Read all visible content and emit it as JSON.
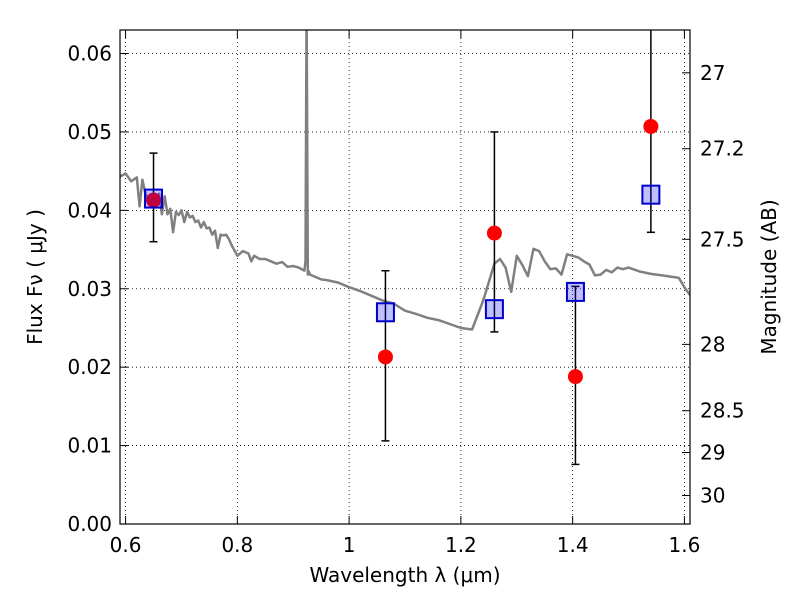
{
  "chart_data": {
    "type": "scatter",
    "xlabel": "Wavelength  λ (μm)",
    "ylabel": "Flux  Fν  ( μJy )",
    "ylabel_right": "Magnitude (AB)",
    "xlim": [
      0.59,
      1.61
    ],
    "ylim": [
      0.0,
      0.063
    ],
    "grid": true,
    "x_ticks": [
      0.6,
      0.8,
      1.0,
      1.2,
      1.4,
      1.6
    ],
    "x_tick_labels": [
      "0.6",
      "0.8",
      "1",
      "1.2",
      "1.4",
      "1.6"
    ],
    "y_ticks": [
      0.0,
      0.01,
      0.02,
      0.03,
      0.04,
      0.05,
      0.06
    ],
    "y_tick_labels": [
      "0.00",
      "0.01",
      "0.02",
      "0.03",
      "0.04",
      "0.05",
      "0.06"
    ],
    "right_ticks": [
      {
        "label": "27",
        "flux": 0.05754
      },
      {
        "label": "27.2",
        "flux": 0.04786
      },
      {
        "label": "27.5",
        "flux": 0.03631
      },
      {
        "label": "28",
        "flux": 0.02291
      },
      {
        "label": "28.5",
        "flux": 0.01445
      },
      {
        "label": "29",
        "flux": 0.00912
      },
      {
        "label": "30",
        "flux": 0.00363
      }
    ],
    "series": [
      {
        "style": "gray line",
        "color": "#808080",
        "x": [
          0.59,
          0.6,
          0.61,
          0.62,
          0.625,
          0.63,
          0.635,
          0.64,
          0.65,
          0.655,
          0.66,
          0.665,
          0.67,
          0.675,
          0.68,
          0.685,
          0.69,
          0.695,
          0.7,
          0.705,
          0.71,
          0.715,
          0.72,
          0.725,
          0.73,
          0.735,
          0.74,
          0.745,
          0.75,
          0.755,
          0.76,
          0.765,
          0.77,
          0.775,
          0.78,
          0.785,
          0.79,
          0.8,
          0.81,
          0.82,
          0.825,
          0.83,
          0.84,
          0.85,
          0.86,
          0.87,
          0.88,
          0.89,
          0.9,
          0.91,
          0.92,
          0.922,
          0.924,
          0.926,
          0.928,
          0.93,
          0.94,
          0.95,
          0.96,
          0.98,
          1.0,
          1.02,
          1.04,
          1.06,
          1.08,
          1.1,
          1.12,
          1.14,
          1.16,
          1.18,
          1.2,
          1.22,
          1.24,
          1.26,
          1.27,
          1.28,
          1.29,
          1.3,
          1.31,
          1.32,
          1.33,
          1.34,
          1.35,
          1.36,
          1.37,
          1.38,
          1.39,
          1.4,
          1.41,
          1.42,
          1.43,
          1.44,
          1.45,
          1.46,
          1.47,
          1.48,
          1.49,
          1.5,
          1.52,
          1.54,
          1.56,
          1.58,
          1.59,
          1.6,
          1.61
        ],
        "y": [
          0.0443,
          0.0447,
          0.0437,
          0.0442,
          0.0405,
          0.0439,
          0.0423,
          0.0414,
          0.0418,
          0.0412,
          0.0421,
          0.0395,
          0.0418,
          0.0395,
          0.0402,
          0.0372,
          0.0398,
          0.0394,
          0.04,
          0.0385,
          0.0398,
          0.0391,
          0.0393,
          0.0385,
          0.0387,
          0.0378,
          0.0385,
          0.0377,
          0.0378,
          0.0369,
          0.0374,
          0.0352,
          0.0369,
          0.0368,
          0.0369,
          0.0363,
          0.0355,
          0.0342,
          0.0348,
          0.0345,
          0.0335,
          0.0342,
          0.0338,
          0.0338,
          0.0335,
          0.0332,
          0.0334,
          0.0328,
          0.0329,
          0.0327,
          0.0323,
          0.0335,
          0.066,
          0.0318,
          0.0322,
          0.0318,
          0.0315,
          0.0312,
          0.0311,
          0.0308,
          0.0302,
          0.0297,
          0.0291,
          0.0285,
          0.0281,
          0.0272,
          0.0268,
          0.0263,
          0.026,
          0.0255,
          0.025,
          0.0248,
          0.0285,
          0.0332,
          0.0338,
          0.0327,
          0.0296,
          0.0342,
          0.033,
          0.0316,
          0.0351,
          0.0348,
          0.0335,
          0.0325,
          0.0326,
          0.0318,
          0.0344,
          0.0342,
          0.034,
          0.0335,
          0.0331,
          0.0317,
          0.0318,
          0.0324,
          0.0321,
          0.0327,
          0.0325,
          0.0327,
          0.0322,
          0.0319,
          0.0317,
          0.0315,
          0.0314,
          0.0302,
          0.0292
        ]
      },
      {
        "style": "red filled circles with error bars",
        "color": "#ff0000",
        "x": [
          0.65,
          1.065,
          1.26,
          1.405,
          1.54
        ],
        "y": [
          0.0413,
          0.0213,
          0.0371,
          0.0188,
          0.0507
        ],
        "yerr_low": [
          0.0053,
          0.0107,
          0.0126,
          0.0112,
          0.0135
        ],
        "yerr_high": [
          0.006,
          0.011,
          0.0129,
          0.0115,
          0.0135
        ]
      },
      {
        "style": "blue open squares",
        "color": "#0000cc",
        "x": [
          0.65,
          1.065,
          1.26,
          1.405,
          1.54
        ],
        "y": [
          0.0415,
          0.027,
          0.0274,
          0.0296,
          0.042
        ]
      }
    ]
  }
}
